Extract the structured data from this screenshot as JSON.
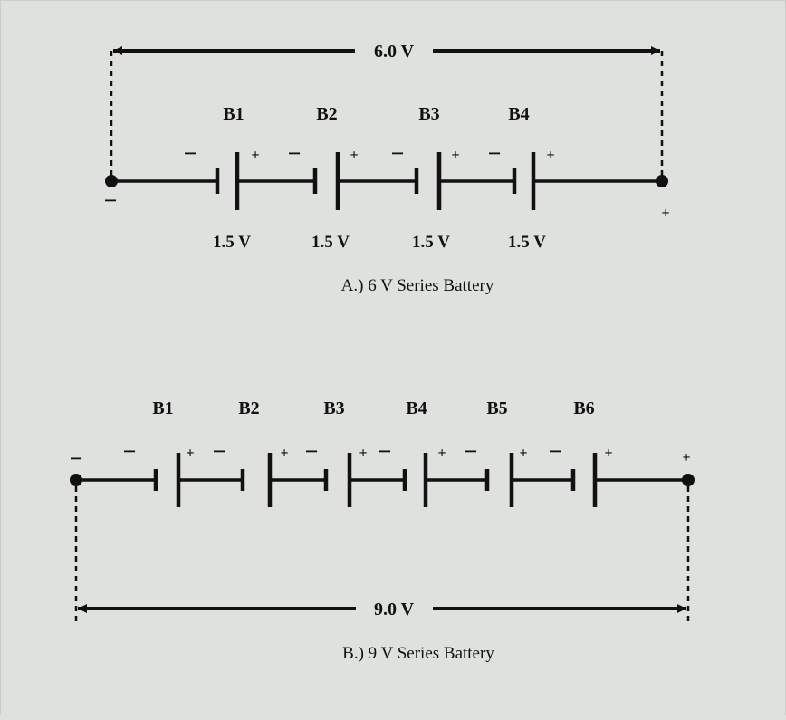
{
  "colors": {
    "background": "#dfe1de",
    "ink": "#111111"
  },
  "circuit_a": {
    "total_voltage": "6.0 V",
    "caption": "A.) 6 V Series Battery",
    "terminal_negative": "−",
    "terminal_positive": "+",
    "cells": [
      {
        "label": "B1",
        "voltage": "1.5 V",
        "neg": "−",
        "pos": "+"
      },
      {
        "label": "B2",
        "voltage": "1.5 V",
        "neg": "−",
        "pos": "+"
      },
      {
        "label": "B3",
        "voltage": "1.5 V",
        "neg": "−",
        "pos": "+"
      },
      {
        "label": "B4",
        "voltage": "1.5 V",
        "neg": "−",
        "pos": "+"
      }
    ]
  },
  "circuit_b": {
    "total_voltage": "9.0 V",
    "caption": "B.) 9 V Series Battery",
    "terminal_negative": "−",
    "terminal_positive": "+",
    "cells": [
      {
        "label": "B1",
        "neg": "−",
        "pos": "+"
      },
      {
        "label": "B2",
        "neg": "−",
        "pos": "+"
      },
      {
        "label": "B3",
        "neg": "−",
        "pos": "+"
      },
      {
        "label": "B4",
        "neg": "−",
        "pos": "+"
      },
      {
        "label": "B5",
        "neg": "−",
        "pos": "+"
      },
      {
        "label": "B6",
        "neg": "−",
        "pos": "+"
      }
    ]
  }
}
